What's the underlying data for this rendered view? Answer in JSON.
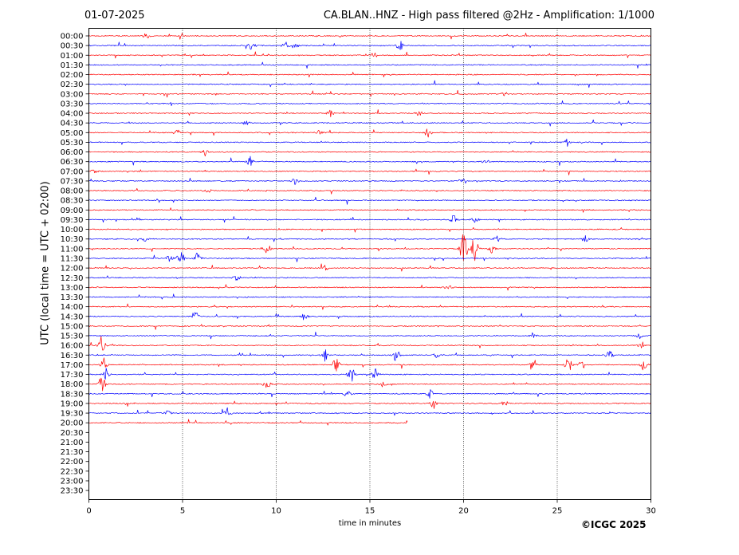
{
  "header": {
    "date": "01-07-2025",
    "title": "CA.BLAN..HNZ - High pass filtered @2Hz - Amplification: 1/1000"
  },
  "footer": {
    "copyright": "©ICGC 2025"
  },
  "chart_data": {
    "type": "line",
    "title": "CA.BLAN..HNZ - High pass filtered @2Hz - Amplification: 1/1000",
    "xlabel": "time in minutes",
    "ylabel": "UTC (local time = UTC + 02:00)",
    "xlim": [
      0,
      30
    ],
    "x_ticks": [
      0,
      5,
      10,
      15,
      20,
      25,
      30
    ],
    "x_tick_labels": [
      "0",
      "5",
      "10",
      "15",
      "20",
      "25",
      "30"
    ],
    "grid": "vertical dotted lines at 5-minute intervals",
    "y_tick_labels": [
      "00:00",
      "00:30",
      "01:00",
      "01:30",
      "02:00",
      "02:30",
      "03:00",
      "03:30",
      "04:00",
      "04:30",
      "05:00",
      "05:30",
      "06:00",
      "06:30",
      "07:00",
      "07:30",
      "08:00",
      "08:30",
      "09:00",
      "09:30",
      "10:00",
      "10:30",
      "11:00",
      "11:30",
      "12:00",
      "12:30",
      "13:00",
      "13:30",
      "14:00",
      "14:30",
      "15:00",
      "15:30",
      "16:00",
      "16:30",
      "17:00",
      "17:30",
      "18:00",
      "18:30",
      "19:00",
      "19:30",
      "20:00",
      "20:30",
      "21:00",
      "21:30",
      "22:00",
      "22:30",
      "23:00",
      "23:30"
    ],
    "trace_colors": [
      "#ff0000",
      "#0000ff"
    ],
    "last_trace": {
      "label": "20:00",
      "end_minute": 17.0
    },
    "events": [
      {
        "row": "00:00",
        "minute": 3.1,
        "amp": 0.5
      },
      {
        "row": "00:30",
        "minute": 8.7,
        "amp": 0.7
      },
      {
        "row": "00:30",
        "minute": 10.5,
        "amp": 0.5
      },
      {
        "row": "00:30",
        "minute": 11.0,
        "amp": 0.6
      },
      {
        "row": "00:30",
        "minute": 16.6,
        "amp": 1.1
      },
      {
        "row": "01:00",
        "minute": 15.2,
        "amp": 0.5
      },
      {
        "row": "03:00",
        "minute": 22.2,
        "amp": 0.3
      },
      {
        "row": "04:00",
        "minute": 12.9,
        "amp": 0.5
      },
      {
        "row": "04:00",
        "minute": 17.6,
        "amp": 0.4
      },
      {
        "row": "04:30",
        "minute": 8.4,
        "amp": 0.4
      },
      {
        "row": "05:00",
        "minute": 4.7,
        "amp": 0.5
      },
      {
        "row": "05:00",
        "minute": 12.3,
        "amp": 0.4
      },
      {
        "row": "05:00",
        "minute": 18.1,
        "amp": 1.0
      },
      {
        "row": "05:30",
        "minute": 25.5,
        "amp": 0.7
      },
      {
        "row": "06:00",
        "minute": 6.2,
        "amp": 0.4
      },
      {
        "row": "06:30",
        "minute": 8.6,
        "amp": 0.8
      },
      {
        "row": "06:30",
        "minute": 21.2,
        "amp": 0.5
      },
      {
        "row": "07:00",
        "minute": 0.3,
        "amp": 0.4
      },
      {
        "row": "07:30",
        "minute": 11.0,
        "amp": 0.4
      },
      {
        "row": "07:30",
        "minute": 19.9,
        "amp": 0.4
      },
      {
        "row": "08:00",
        "minute": 6.3,
        "amp": 0.5
      },
      {
        "row": "09:30",
        "minute": 19.5,
        "amp": 0.8
      },
      {
        "row": "09:30",
        "minute": 20.6,
        "amp": 0.6
      },
      {
        "row": "10:30",
        "minute": 3.0,
        "amp": 0.5
      },
      {
        "row": "10:30",
        "minute": 21.8,
        "amp": 0.5
      },
      {
        "row": "10:30",
        "minute": 26.5,
        "amp": 0.5
      },
      {
        "row": "11:00",
        "minute": 9.5,
        "amp": 0.9
      },
      {
        "row": "11:00",
        "minute": 20.0,
        "amp": 3.2
      },
      {
        "row": "11:00",
        "minute": 20.6,
        "amp": 2.8
      },
      {
        "row": "11:00",
        "minute": 21.5,
        "amp": 0.7
      },
      {
        "row": "11:30",
        "minute": 4.3,
        "amp": 0.7
      },
      {
        "row": "11:30",
        "minute": 4.9,
        "amp": 1.3
      },
      {
        "row": "11:30",
        "minute": 5.8,
        "amp": 1.2
      },
      {
        "row": "12:00",
        "minute": 12.6,
        "amp": 0.4
      },
      {
        "row": "12:30",
        "minute": 7.9,
        "amp": 0.6
      },
      {
        "row": "13:00",
        "minute": 19.2,
        "amp": 0.4
      },
      {
        "row": "14:30",
        "minute": 5.7,
        "amp": 0.6
      },
      {
        "row": "14:30",
        "minute": 11.5,
        "amp": 0.5
      },
      {
        "row": "15:30",
        "minute": 23.7,
        "amp": 0.5
      },
      {
        "row": "15:30",
        "minute": 29.4,
        "amp": 0.5
      },
      {
        "row": "16:00",
        "minute": 0.7,
        "amp": 1.3
      },
      {
        "row": "16:00",
        "minute": 29.5,
        "amp": 0.5
      },
      {
        "row": "16:30",
        "minute": 12.6,
        "amp": 0.9
      },
      {
        "row": "16:30",
        "minute": 16.4,
        "amp": 1.0
      },
      {
        "row": "16:30",
        "minute": 18.6,
        "amp": 0.6
      },
      {
        "row": "16:30",
        "minute": 27.8,
        "amp": 0.7
      },
      {
        "row": "17:00",
        "minute": 0.8,
        "amp": 1.1
      },
      {
        "row": "17:00",
        "minute": 13.2,
        "amp": 1.3
      },
      {
        "row": "17:00",
        "minute": 23.7,
        "amp": 0.6
      },
      {
        "row": "17:00",
        "minute": 25.6,
        "amp": 1.4
      },
      {
        "row": "17:00",
        "minute": 26.3,
        "amp": 0.8
      },
      {
        "row": "17:00",
        "minute": 29.6,
        "amp": 1.1
      },
      {
        "row": "17:30",
        "minute": 0.9,
        "amp": 0.9
      },
      {
        "row": "17:30",
        "minute": 14.0,
        "amp": 1.4
      },
      {
        "row": "17:30",
        "minute": 15.3,
        "amp": 1.2
      },
      {
        "row": "18:00",
        "minute": 0.7,
        "amp": 1.5
      },
      {
        "row": "18:00",
        "minute": 9.5,
        "amp": 1.0
      },
      {
        "row": "18:00",
        "minute": 15.7,
        "amp": 0.6
      },
      {
        "row": "18:30",
        "minute": 13.8,
        "amp": 0.6
      },
      {
        "row": "18:30",
        "minute": 18.2,
        "amp": 0.7
      },
      {
        "row": "19:00",
        "minute": 18.4,
        "amp": 0.8
      },
      {
        "row": "19:00",
        "minute": 22.2,
        "amp": 0.5
      },
      {
        "row": "19:30",
        "minute": 7.4,
        "amp": 0.8
      },
      {
        "row": "19:30",
        "minute": 4.2,
        "amp": 0.4
      }
    ]
  }
}
